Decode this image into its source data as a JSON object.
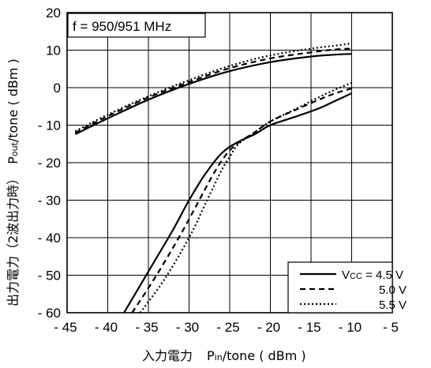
{
  "chart_data": {
    "type": "line",
    "annotation": "f = 950/951 MHz",
    "xlabel_prefix": "入力電力",
    "xlabel_main": "P",
    "xlabel_sub": "in",
    "xlabel_suffix": "/tone ( dBm )",
    "ylabel_prefix": "出力電力（2波出力時）",
    "ylabel_main": "P",
    "ylabel_sub": "out",
    "ylabel_suffix": "/tone ( dBm )",
    "xlim": [
      -45,
      -5
    ],
    "ylim": [
      -60,
      20
    ],
    "x_ticks": [
      "- 45",
      "- 40",
      "- 35",
      "- 30",
      "- 25",
      "- 20",
      "- 15",
      "- 10",
      "- 5"
    ],
    "y_ticks": [
      "20",
      "10",
      "0",
      "- 10",
      "- 20",
      "- 30",
      "- 40",
      "- 50",
      "- 60"
    ],
    "x_tick_values": [
      -45,
      -40,
      -35,
      -30,
      -25,
      -20,
      -15,
      -10,
      -5
    ],
    "y_tick_values": [
      20,
      10,
      0,
      -10,
      -20,
      -30,
      -40,
      -50,
      -60
    ],
    "grid": true,
    "legend_position": "bottom-right",
    "legend": [
      {
        "label_main": "V",
        "label_sub": "CC",
        "label_rest": " = 4.5 V",
        "style": "solid"
      },
      {
        "label_main": "",
        "label_sub": "",
        "label_rest": "5.0 V",
        "style": "dashed"
      },
      {
        "label_main": "",
        "label_sub": "",
        "label_rest": "5.5 V",
        "style": "dotted"
      }
    ],
    "series": [
      {
        "group": "fundamental",
        "style": "solid",
        "x": [
          -44,
          -40,
          -35,
          -30,
          -25,
          -20,
          -15,
          -12,
          -10
        ],
        "y": [
          -12.4,
          -8.2,
          -3.2,
          1.0,
          4.4,
          6.8,
          8.3,
          8.8,
          9.0
        ]
      },
      {
        "group": "fundamental",
        "style": "dashed",
        "x": [
          -44,
          -40,
          -35,
          -30,
          -25,
          -20,
          -15,
          -12,
          -10
        ],
        "y": [
          -12.0,
          -7.6,
          -2.6,
          1.5,
          5.2,
          7.8,
          9.4,
          10.2,
          10.4
        ]
      },
      {
        "group": "fundamental",
        "style": "dotted",
        "x": [
          -44,
          -40,
          -35,
          -30,
          -25,
          -20,
          -15,
          -12,
          -10
        ],
        "y": [
          -11.6,
          -7.2,
          -2.3,
          2.0,
          5.8,
          8.6,
          10.4,
          11.2,
          11.8
        ]
      },
      {
        "group": "intermod",
        "style": "solid",
        "x": [
          -38,
          -35,
          -32,
          -30,
          -28,
          -26,
          -24,
          -22,
          -20,
          -17,
          -14,
          -12,
          -10
        ],
        "y": [
          -60,
          -49,
          -38,
          -30,
          -23,
          -17.5,
          -14.5,
          -12.5,
          -10,
          -7.8,
          -5.5,
          -3.5,
          -1.5
        ]
      },
      {
        "group": "intermod",
        "style": "dashed",
        "x": [
          -37,
          -34,
          -31,
          -29,
          -27,
          -25.5,
          -24,
          -22,
          -20,
          -17,
          -14,
          -12,
          -10
        ],
        "y": [
          -60,
          -50,
          -39,
          -31,
          -23,
          -18,
          -14.8,
          -12.0,
          -9.0,
          -6.0,
          -3.2,
          -1.5,
          -0.2
        ]
      },
      {
        "group": "intermod",
        "style": "dotted",
        "x": [
          -36,
          -33,
          -30,
          -28,
          -26,
          -25,
          -24,
          -22,
          -20,
          -17,
          -14,
          -12,
          -10
        ],
        "y": [
          -60,
          -51,
          -40,
          -31,
          -22,
          -18.5,
          -15.2,
          -12.0,
          -9.0,
          -5.8,
          -2.5,
          -0.5,
          1.3
        ]
      }
    ]
  }
}
